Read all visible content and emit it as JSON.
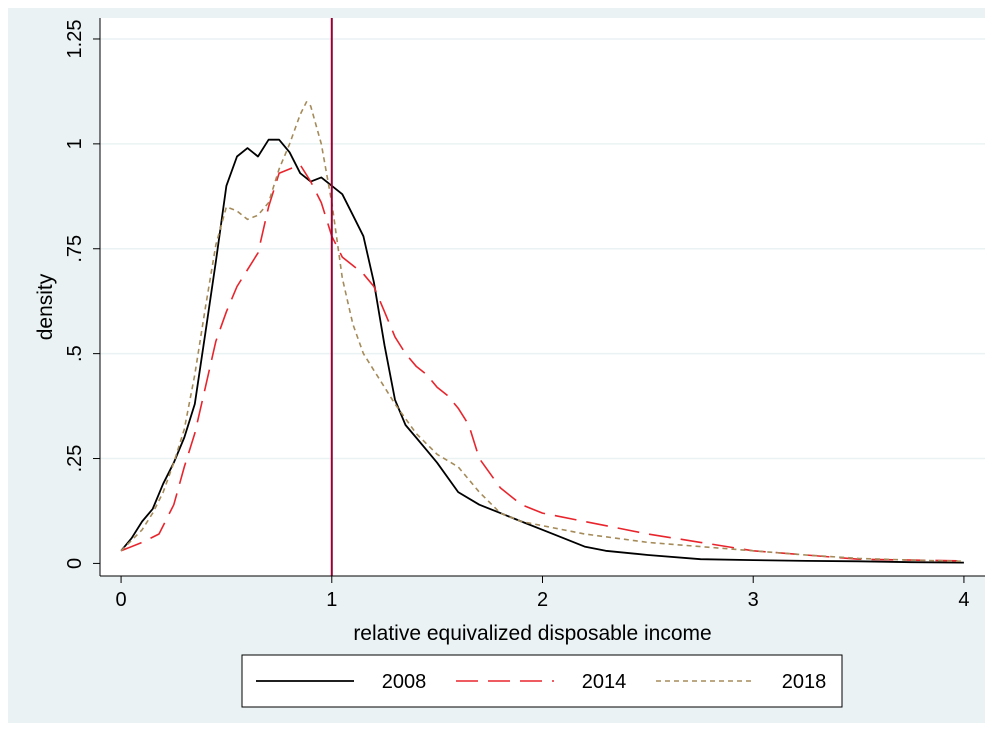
{
  "chart_data": {
    "type": "line",
    "xlabel": "relative equivalized disposable income",
    "ylabel": "density",
    "xlim": [
      -0.1,
      4.1
    ],
    "ylim": [
      -0.03,
      1.3
    ],
    "xticks": [
      0,
      1,
      2,
      3,
      4
    ],
    "xtick_labels": [
      "0",
      "1",
      "2",
      "3",
      "4"
    ],
    "yticks": [
      0,
      0.25,
      0.5,
      0.75,
      1,
      1.25
    ],
    "ytick_labels": [
      "0",
      ".25",
      ".5",
      ".75",
      "1",
      "1.25"
    ],
    "grid": "horizontal",
    "legend_position": "bottom",
    "reference_line": {
      "x": 1,
      "color": "#990033"
    },
    "colors": {
      "background": "#eaf2f3",
      "plot_area": "#ffffff",
      "grid": "#eaf2f3"
    },
    "series": [
      {
        "name": "2008",
        "color": "#000000",
        "dash": "solid",
        "x": [
          0,
          0.05,
          0.1,
          0.15,
          0.2,
          0.25,
          0.3,
          0.35,
          0.4,
          0.45,
          0.5,
          0.55,
          0.6,
          0.65,
          0.7,
          0.75,
          0.8,
          0.85,
          0.9,
          0.95,
          1.0,
          1.05,
          1.1,
          1.15,
          1.2,
          1.25,
          1.3,
          1.35,
          1.4,
          1.45,
          1.5,
          1.6,
          1.7,
          1.8,
          1.9,
          2.0,
          2.1,
          2.2,
          2.3,
          2.5,
          2.75,
          3.0,
          3.25,
          3.5,
          3.75,
          4.0
        ],
        "y": [
          0.03,
          0.06,
          0.1,
          0.13,
          0.19,
          0.24,
          0.3,
          0.38,
          0.55,
          0.72,
          0.9,
          0.97,
          0.99,
          0.97,
          1.01,
          1.01,
          0.98,
          0.93,
          0.91,
          0.92,
          0.9,
          0.88,
          0.83,
          0.78,
          0.67,
          0.52,
          0.39,
          0.33,
          0.3,
          0.27,
          0.24,
          0.17,
          0.14,
          0.12,
          0.1,
          0.08,
          0.06,
          0.04,
          0.03,
          0.02,
          0.01,
          0.008,
          0.006,
          0.005,
          0.003,
          0.002
        ]
      },
      {
        "name": "2014",
        "color": "#e8252d",
        "dash": "long-dash",
        "x": [
          0,
          0.1,
          0.18,
          0.25,
          0.3,
          0.35,
          0.4,
          0.45,
          0.5,
          0.55,
          0.6,
          0.65,
          0.7,
          0.75,
          0.8,
          0.85,
          0.9,
          0.95,
          1.0,
          1.05,
          1.1,
          1.15,
          1.2,
          1.25,
          1.3,
          1.35,
          1.4,
          1.45,
          1.5,
          1.55,
          1.6,
          1.65,
          1.7,
          1.8,
          1.9,
          2.0,
          2.2,
          2.5,
          2.75,
          3.0,
          3.25,
          3.5,
          3.75,
          4.0
        ],
        "y": [
          0.03,
          0.05,
          0.07,
          0.14,
          0.23,
          0.31,
          0.42,
          0.53,
          0.6,
          0.66,
          0.7,
          0.74,
          0.85,
          0.93,
          0.94,
          0.95,
          0.91,
          0.86,
          0.78,
          0.73,
          0.71,
          0.69,
          0.66,
          0.6,
          0.54,
          0.5,
          0.47,
          0.45,
          0.42,
          0.4,
          0.37,
          0.33,
          0.25,
          0.18,
          0.14,
          0.12,
          0.1,
          0.07,
          0.05,
          0.03,
          0.02,
          0.01,
          0.008,
          0.006
        ]
      },
      {
        "name": "2018",
        "color": "#a58b5a",
        "dash": "short-dash",
        "x": [
          0,
          0.1,
          0.15,
          0.2,
          0.25,
          0.3,
          0.35,
          0.4,
          0.45,
          0.5,
          0.55,
          0.6,
          0.65,
          0.7,
          0.75,
          0.8,
          0.85,
          0.88,
          0.9,
          0.95,
          1.0,
          1.05,
          1.1,
          1.15,
          1.2,
          1.25,
          1.3,
          1.4,
          1.5,
          1.6,
          1.7,
          1.8,
          1.9,
          2.0,
          2.2,
          2.5,
          2.75,
          3.0,
          3.25,
          3.5,
          3.75,
          4.0
        ],
        "y": [
          0.03,
          0.08,
          0.12,
          0.17,
          0.24,
          0.32,
          0.45,
          0.61,
          0.76,
          0.85,
          0.84,
          0.82,
          0.83,
          0.86,
          0.94,
          1.0,
          1.07,
          1.1,
          1.09,
          1.0,
          0.86,
          0.68,
          0.57,
          0.5,
          0.46,
          0.42,
          0.38,
          0.31,
          0.26,
          0.23,
          0.17,
          0.12,
          0.1,
          0.09,
          0.07,
          0.05,
          0.04,
          0.03,
          0.02,
          0.012,
          0.008,
          0.005
        ]
      }
    ]
  }
}
